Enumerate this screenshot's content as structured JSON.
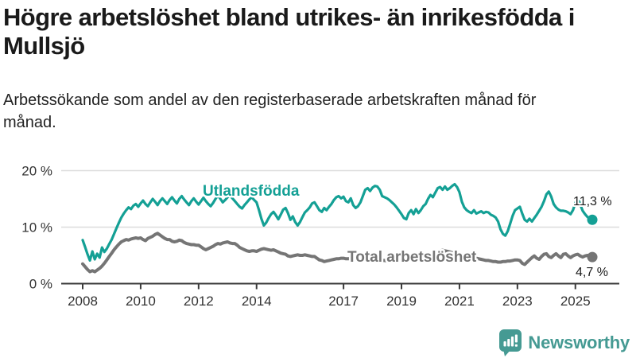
{
  "header": {
    "title": "Högre arbetslöshet bland utrikes- än inrikesfödda i Mullsjö",
    "subtitle": "Arbetssökande som andel av den registerbaserade arbetskraften månad för månad."
  },
  "footer": {
    "brand": "Newsworthy",
    "logo_icon": "bar-chart-speech-bubble-icon"
  },
  "colors": {
    "foreign_born_line": "#14a095",
    "total_line": "#757575",
    "grid": "#dcdcdc",
    "axis": "#3a3a3a",
    "tick_text": "#333333",
    "annotation_text": "#1a1a1a",
    "brand_teal": "#459a93"
  },
  "chart_data": {
    "type": "line",
    "title": "Högre arbetslöshet bland utrikes- än inrikesfödda i Mullsjö",
    "subtitle": "Arbetssökande som andel av den registerbaserade arbetskraften månad för månad.",
    "frequency": "monthly",
    "x_start": "2008-01",
    "x_end": "2025-08",
    "ylim": [
      0,
      20
    ],
    "grid": "horizontal",
    "legend_position": "inline-labels",
    "y_ticks": [
      {
        "label": "0 %",
        "value": 0
      },
      {
        "label": "10 %",
        "value": 10
      },
      {
        "label": "20 %",
        "value": 20
      }
    ],
    "x_ticks": [
      {
        "label": "2008",
        "month_index": 0
      },
      {
        "label": "2010",
        "month_index": 24
      },
      {
        "label": "2012",
        "month_index": 48
      },
      {
        "label": "2014",
        "month_index": 72
      },
      {
        "label": "2017",
        "month_index": 108
      },
      {
        "label": "2019",
        "month_index": 132
      },
      {
        "label": "2021",
        "month_index": 156
      },
      {
        "label": "2023",
        "month_index": 180
      },
      {
        "label": "2025",
        "month_index": 204
      }
    ],
    "series": [
      {
        "name": "Utlandsfödda",
        "color": "#14a095",
        "end_label": "11,3 %",
        "end_value": 11.3,
        "values": [
          7.7,
          6.5,
          5.2,
          4.1,
          5.7,
          4.3,
          5.3,
          4.6,
          6.4,
          5.6,
          6.2,
          7.0,
          7.8,
          8.8,
          9.8,
          10.8,
          11.7,
          12.4,
          13.0,
          13.5,
          13.2,
          13.8,
          14.1,
          13.6,
          14.2,
          14.7,
          14.1,
          13.7,
          14.4,
          15.0,
          14.5,
          13.9,
          14.6,
          15.1,
          14.6,
          14.1,
          14.8,
          15.3,
          14.7,
          14.2,
          15.0,
          15.5,
          14.9,
          14.4,
          13.9,
          14.6,
          15.1,
          14.5,
          14.0,
          14.6,
          15.2,
          14.6,
          14.1,
          13.7,
          14.3,
          15.0,
          15.6,
          15.0,
          14.4,
          14.8,
          15.3,
          15.6,
          15.1,
          14.6,
          14.1,
          13.6,
          13.3,
          13.9,
          14.4,
          14.9,
          15.3,
          14.8,
          14.4,
          13.0,
          11.5,
          10.3,
          10.8,
          11.6,
          12.3,
          12.7,
          12.1,
          11.4,
          12.2,
          13.1,
          13.4,
          12.5,
          11.3,
          11.9,
          10.9,
          10.3,
          10.9,
          11.8,
          12.6,
          13.0,
          13.5,
          14.2,
          14.4,
          13.7,
          13.0,
          12.7,
          13.4,
          13.0,
          13.6,
          14.1,
          14.8,
          15.3,
          15.5,
          15.1,
          15.4,
          14.6,
          14.4,
          15.1,
          13.9,
          13.4,
          13.7,
          14.4,
          15.5,
          16.6,
          16.9,
          16.4,
          17.0,
          17.3,
          17.2,
          16.6,
          15.5,
          15.3,
          15.1,
          14.8,
          14.4,
          14.0,
          13.5,
          12.9,
          12.3,
          11.6,
          11.4,
          12.5,
          13.0,
          12.3,
          13.2,
          12.5,
          13.0,
          13.7,
          14.1,
          15.0,
          15.7,
          15.3,
          16.1,
          16.9,
          17.1,
          16.6,
          17.2,
          16.6,
          16.9,
          17.3,
          17.6,
          17.1,
          16.2,
          14.5,
          13.5,
          13.0,
          12.7,
          12.5,
          13.0,
          12.4,
          12.6,
          12.8,
          12.5,
          12.7,
          12.6,
          12.2,
          12.0,
          11.7,
          11.0,
          9.6,
          8.8,
          8.5,
          9.3,
          10.6,
          12.0,
          13.0,
          13.3,
          13.6,
          12.4,
          11.3,
          11.0,
          11.5,
          11.0,
          11.6,
          12.2,
          12.9,
          13.6,
          14.6,
          15.8,
          16.3,
          15.4,
          14.1,
          13.5,
          13.1,
          12.9,
          12.9,
          12.8,
          12.6,
          12.3,
          13.0,
          14.3,
          15.3,
          14.0,
          12.9,
          12.3,
          11.8,
          11.5,
          11.3
        ]
      },
      {
        "name": "Total arbetslöshet",
        "color": "#757575",
        "end_label": "4,7 %",
        "end_value": 4.7,
        "values": [
          3.5,
          3.0,
          2.5,
          2.1,
          2.3,
          2.1,
          2.4,
          2.7,
          3.1,
          3.6,
          4.2,
          4.8,
          5.4,
          6.0,
          6.5,
          7.0,
          7.4,
          7.6,
          7.8,
          7.7,
          7.9,
          8.0,
          8.1,
          8.0,
          8.1,
          7.8,
          7.6,
          8.0,
          8.2,
          8.4,
          8.7,
          8.9,
          8.6,
          8.3,
          8.0,
          7.8,
          7.8,
          7.5,
          7.4,
          7.5,
          7.7,
          7.6,
          7.3,
          7.1,
          7.0,
          6.9,
          6.9,
          6.8,
          6.8,
          6.5,
          6.2,
          6.0,
          6.2,
          6.4,
          6.6,
          6.9,
          7.1,
          7.0,
          7.2,
          7.3,
          7.4,
          7.2,
          7.1,
          7.1,
          6.8,
          6.4,
          6.2,
          6.0,
          5.8,
          5.7,
          5.8,
          5.8,
          5.7,
          5.9,
          6.1,
          6.2,
          6.1,
          6.0,
          5.9,
          6.0,
          5.8,
          5.6,
          5.4,
          5.3,
          5.2,
          4.9,
          4.8,
          4.9,
          5.0,
          5.1,
          5.0,
          5.0,
          5.1,
          5.0,
          4.9,
          4.8,
          4.8,
          4.5,
          4.2,
          4.1,
          3.9,
          4.0,
          4.1,
          4.2,
          4.3,
          4.4,
          4.4,
          4.5,
          4.5,
          4.4,
          4.4,
          4.5,
          4.4,
          4.3,
          4.3,
          4.4,
          4.4,
          4.5,
          4.4,
          4.4,
          4.3,
          4.3,
          4.2,
          4.2,
          4.1,
          4.1,
          4.0,
          4.0,
          4.1,
          4.1,
          4.2,
          4.2,
          4.2,
          4.1,
          4.1,
          4.2,
          4.3,
          4.2,
          4.3,
          4.3,
          4.4,
          4.4,
          4.5,
          4.6,
          4.8,
          5.0,
          5.3,
          5.6,
          5.8,
          5.9,
          5.8,
          5.7,
          5.6,
          5.5,
          5.4,
          5.3,
          5.2,
          5.1,
          5.0,
          4.9,
          4.8,
          4.7,
          4.6,
          4.5,
          4.4,
          4.3,
          4.2,
          4.1,
          4.1,
          4.0,
          3.9,
          3.9,
          3.8,
          3.8,
          3.9,
          3.9,
          4.0,
          4.0,
          4.1,
          4.2,
          4.2,
          4.1,
          3.6,
          3.4,
          3.8,
          4.2,
          4.6,
          4.9,
          4.5,
          4.3,
          4.8,
          5.2,
          5.3,
          4.8,
          4.6,
          5.0,
          5.3,
          4.9,
          4.6,
          5.2,
          5.3,
          4.9,
          4.6,
          4.9,
          5.1,
          5.2,
          4.9,
          4.7,
          4.9,
          5.0,
          4.8,
          4.7
        ]
      }
    ]
  }
}
